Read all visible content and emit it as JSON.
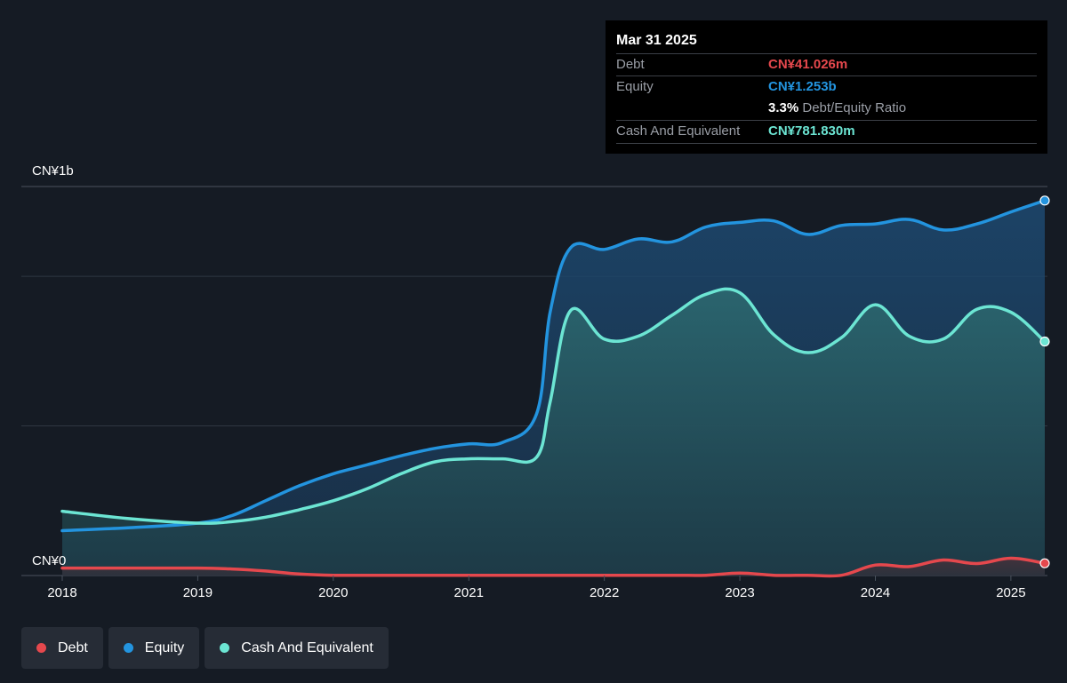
{
  "tooltip": {
    "date": "Mar 31 2025",
    "debt_label": "Debt",
    "debt_value": "CN¥41.026m",
    "equity_label": "Equity",
    "equity_value": "CN¥1.253b",
    "ratio_pct": "3.3%",
    "ratio_label": "Debt/Equity Ratio",
    "cash_label": "Cash And Equivalent",
    "cash_value": "CN¥781.830m"
  },
  "legend": [
    {
      "label": "Debt",
      "color": "#e5484d"
    },
    {
      "label": "Equity",
      "color": "#2394df"
    },
    {
      "label": "Cash And Equivalent",
      "color": "#6ce5d3"
    }
  ],
  "colors": {
    "debt": "#e5484d",
    "equity": "#2394df",
    "cash": "#6ce5d3",
    "background": "#151b24",
    "grid": "#2f3742"
  },
  "chart_data": {
    "type": "area",
    "y_unit": "CN¥",
    "ylim": [
      0,
      1.3
    ],
    "ytick_labels": [
      {
        "value": 1.3,
        "label": "CN¥1b"
      },
      {
        "value": 0,
        "label": "CN¥0"
      }
    ],
    "gridlines": [
      0,
      0.5,
      1.0,
      1.3
    ],
    "xlim": [
      2018,
      2025.25
    ],
    "xtick_labels": [
      "2018",
      "2019",
      "2020",
      "2021",
      "2022",
      "2023",
      "2024",
      "2025"
    ],
    "series": [
      {
        "name": "Equity",
        "color": "#2394df",
        "points": [
          [
            2018,
            0.15
          ],
          [
            2018.5,
            0.16
          ],
          [
            2019,
            0.175
          ],
          [
            2019.25,
            0.2
          ],
          [
            2019.5,
            0.25
          ],
          [
            2019.75,
            0.3
          ],
          [
            2020,
            0.34
          ],
          [
            2020.25,
            0.37
          ],
          [
            2020.5,
            0.4
          ],
          [
            2020.75,
            0.425
          ],
          [
            2021,
            0.44
          ],
          [
            2021.25,
            0.445
          ],
          [
            2021.5,
            0.54
          ],
          [
            2021.6,
            0.88
          ],
          [
            2021.75,
            1.095
          ],
          [
            2022,
            1.09
          ],
          [
            2022.25,
            1.125
          ],
          [
            2022.5,
            1.115
          ],
          [
            2022.75,
            1.165
          ],
          [
            2023,
            1.18
          ],
          [
            2023.25,
            1.185
          ],
          [
            2023.5,
            1.14
          ],
          [
            2023.75,
            1.17
          ],
          [
            2024,
            1.175
          ],
          [
            2024.25,
            1.19
          ],
          [
            2024.5,
            1.155
          ],
          [
            2024.75,
            1.175
          ],
          [
            2025,
            1.215
          ],
          [
            2025.25,
            1.253
          ]
        ]
      },
      {
        "name": "Cash And Equivalent",
        "color": "#6ce5d3",
        "points": [
          [
            2018,
            0.215
          ],
          [
            2018.5,
            0.19
          ],
          [
            2019,
            0.175
          ],
          [
            2019.25,
            0.18
          ],
          [
            2019.5,
            0.195
          ],
          [
            2019.75,
            0.22
          ],
          [
            2020,
            0.25
          ],
          [
            2020.25,
            0.29
          ],
          [
            2020.5,
            0.34
          ],
          [
            2020.75,
            0.38
          ],
          [
            2021,
            0.39
          ],
          [
            2021.25,
            0.39
          ],
          [
            2021.5,
            0.395
          ],
          [
            2021.6,
            0.58
          ],
          [
            2021.75,
            0.885
          ],
          [
            2022,
            0.79
          ],
          [
            2022.25,
            0.8
          ],
          [
            2022.5,
            0.87
          ],
          [
            2022.75,
            0.94
          ],
          [
            2023,
            0.945
          ],
          [
            2023.25,
            0.805
          ],
          [
            2023.5,
            0.745
          ],
          [
            2023.75,
            0.795
          ],
          [
            2024,
            0.905
          ],
          [
            2024.25,
            0.8
          ],
          [
            2024.5,
            0.79
          ],
          [
            2024.75,
            0.89
          ],
          [
            2025,
            0.88
          ],
          [
            2025.25,
            0.782
          ]
        ]
      },
      {
        "name": "Debt",
        "color": "#e5484d",
        "points": [
          [
            2018,
            0.025
          ],
          [
            2018.5,
            0.025
          ],
          [
            2019,
            0.025
          ],
          [
            2019.25,
            0.022
          ],
          [
            2019.5,
            0.015
          ],
          [
            2019.75,
            0.005
          ],
          [
            2020,
            0.001
          ],
          [
            2020.5,
            0.001
          ],
          [
            2021,
            0.001
          ],
          [
            2021.5,
            0.001
          ],
          [
            2022,
            0.001
          ],
          [
            2022.5,
            0.001
          ],
          [
            2022.75,
            0.001
          ],
          [
            2023,
            0.008
          ],
          [
            2023.25,
            0.001
          ],
          [
            2023.5,
            0.001
          ],
          [
            2023.75,
            0.001
          ],
          [
            2024,
            0.035
          ],
          [
            2024.25,
            0.03
          ],
          [
            2024.5,
            0.052
          ],
          [
            2024.75,
            0.04
          ],
          [
            2025,
            0.058
          ],
          [
            2025.25,
            0.041
          ]
        ]
      }
    ]
  }
}
